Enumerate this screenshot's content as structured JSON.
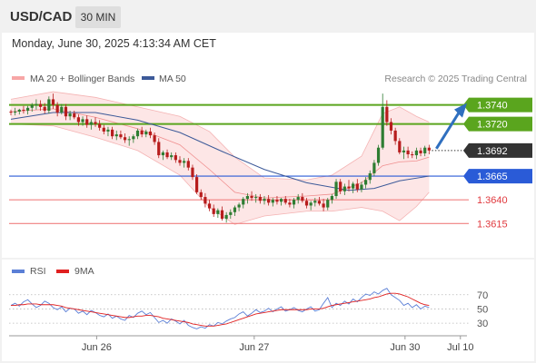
{
  "header": {
    "symbol": "USD/CAD",
    "timeframe": "30 MIN"
  },
  "timestamp": "Monday, June 30, 2025 4:13:34 AM CET",
  "legend": {
    "bollinger": "MA 20 + Bollinger Bands",
    "ma50": "MA 50",
    "copyright": "Research © 2025 Trading Central",
    "rsi": "RSI",
    "rsi_ma": "9MA"
  },
  "colors": {
    "candle_up": "#2e7d32",
    "candle_down": "#b71c1c",
    "resistance": "#5aa51e",
    "support_first": "#2a5bd7",
    "support": "#f08080",
    "ma50": "#3d5a99",
    "bollinger": "#f7a6a6",
    "rsi": "#5b7fd6",
    "rsi_ma": "#e02020",
    "current_price_bg": "#333333",
    "arrow": "#2f6fbf"
  },
  "chart_data": [
    {
      "type": "candlestick",
      "title": "USD/CAD 30 MIN",
      "x_ticks": [
        "Jun 26",
        "Jun 27",
        "Jun 30",
        "Jul 10"
      ],
      "ylim": [
        1.36,
        1.3755
      ],
      "current_price": 1.3692,
      "levels": [
        {
          "value": 1.374,
          "label": "1.3740",
          "kind": "resistance"
        },
        {
          "value": 1.372,
          "label": "1.3720",
          "kind": "resistance"
        },
        {
          "value": 1.3665,
          "label": "1.3665",
          "kind": "support_first"
        },
        {
          "value": 1.364,
          "label": "1.3640",
          "kind": "support"
        },
        {
          "value": 1.3615,
          "label": "1.3615",
          "kind": "support"
        }
      ],
      "forecast_arrow": {
        "from": 1.3692,
        "to": 1.374,
        "direction": "up"
      },
      "candles": [
        [
          1.3733,
          1.3735,
          1.3729,
          1.3732
        ],
        [
          1.3732,
          1.3737,
          1.3729,
          1.3733
        ],
        [
          1.3733,
          1.3736,
          1.373,
          1.3735
        ],
        [
          1.3735,
          1.3739,
          1.3731,
          1.3734
        ],
        [
          1.3734,
          1.3739,
          1.373,
          1.3737
        ],
        [
          1.3737,
          1.3742,
          1.3733,
          1.374
        ],
        [
          1.374,
          1.3746,
          1.3735,
          1.3741
        ],
        [
          1.3741,
          1.3745,
          1.3734,
          1.3738
        ],
        [
          1.3738,
          1.3742,
          1.3731,
          1.3734
        ],
        [
          1.3734,
          1.3749,
          1.3731,
          1.3746
        ],
        [
          1.3746,
          1.3752,
          1.3736,
          1.374
        ],
        [
          1.374,
          1.3743,
          1.3728,
          1.3732
        ],
        [
          1.3732,
          1.3741,
          1.373,
          1.3738
        ],
        [
          1.3738,
          1.3741,
          1.3724,
          1.3728
        ],
        [
          1.3728,
          1.3734,
          1.3724,
          1.3731
        ],
        [
          1.3731,
          1.3734,
          1.3725,
          1.3727
        ],
        [
          1.3727,
          1.373,
          1.3718,
          1.3722
        ],
        [
          1.3722,
          1.3728,
          1.3718,
          1.3725
        ],
        [
          1.3725,
          1.3729,
          1.3716,
          1.3719
        ],
        [
          1.3719,
          1.3725,
          1.3714,
          1.3722
        ],
        [
          1.3722,
          1.3727,
          1.3717,
          1.372
        ],
        [
          1.372,
          1.3724,
          1.3713,
          1.3716
        ],
        [
          1.3716,
          1.3719,
          1.3709,
          1.3712
        ],
        [
          1.3712,
          1.3717,
          1.3707,
          1.3714
        ],
        [
          1.3714,
          1.3717,
          1.3704,
          1.3707
        ],
        [
          1.3707,
          1.3713,
          1.3703,
          1.3709
        ],
        [
          1.3709,
          1.3713,
          1.3704,
          1.3706
        ],
        [
          1.3706,
          1.371,
          1.37,
          1.3703
        ],
        [
          1.3703,
          1.3707,
          1.3697,
          1.3704
        ],
        [
          1.3704,
          1.3709,
          1.37,
          1.3707
        ],
        [
          1.3707,
          1.3715,
          1.3704,
          1.3713
        ],
        [
          1.3713,
          1.3717,
          1.3706,
          1.3709
        ],
        [
          1.3709,
          1.3714,
          1.3706,
          1.3712
        ],
        [
          1.3712,
          1.3716,
          1.3705,
          1.3708
        ],
        [
          1.3708,
          1.3711,
          1.3698,
          1.3701
        ],
        [
          1.3701,
          1.3705,
          1.3684,
          1.3687
        ],
        [
          1.3687,
          1.3692,
          1.3682,
          1.369
        ],
        [
          1.369,
          1.3693,
          1.3683,
          1.3685
        ],
        [
          1.3685,
          1.369,
          1.3682,
          1.3687
        ],
        [
          1.3687,
          1.369,
          1.3679,
          1.3682
        ],
        [
          1.3682,
          1.3686,
          1.3676,
          1.3679
        ],
        [
          1.3679,
          1.3684,
          1.3674,
          1.3681
        ],
        [
          1.3681,
          1.3684,
          1.3671,
          1.3674
        ],
        [
          1.3674,
          1.3677,
          1.3661,
          1.3664
        ],
        [
          1.3664,
          1.3667,
          1.3646,
          1.3648
        ],
        [
          1.3648,
          1.3651,
          1.364,
          1.3643
        ],
        [
          1.3643,
          1.3647,
          1.3632,
          1.3636
        ],
        [
          1.3636,
          1.364,
          1.3628,
          1.3631
        ],
        [
          1.3631,
          1.3635,
          1.3622,
          1.3625
        ],
        [
          1.3625,
          1.3631,
          1.3621,
          1.3629
        ],
        [
          1.3629,
          1.3633,
          1.3618,
          1.362
        ],
        [
          1.362,
          1.3627,
          1.3616,
          1.3624
        ],
        [
          1.3624,
          1.363,
          1.362,
          1.3627
        ],
        [
          1.3627,
          1.3634,
          1.3623,
          1.3632
        ],
        [
          1.3632,
          1.3637,
          1.3628,
          1.3635
        ],
        [
          1.3635,
          1.3643,
          1.3631,
          1.3641
        ],
        [
          1.3641,
          1.3647,
          1.3636,
          1.3644
        ],
        [
          1.3644,
          1.3649,
          1.3639,
          1.3642
        ],
        [
          1.3642,
          1.3646,
          1.3637,
          1.3643
        ],
        [
          1.3643,
          1.3646,
          1.3636,
          1.3639
        ],
        [
          1.3639,
          1.3644,
          1.3635,
          1.3641
        ],
        [
          1.3641,
          1.3645,
          1.3634,
          1.3637
        ],
        [
          1.3637,
          1.3642,
          1.3633,
          1.364
        ],
        [
          1.364,
          1.3644,
          1.3635,
          1.3638
        ],
        [
          1.3638,
          1.3642,
          1.3634,
          1.3641
        ],
        [
          1.3641,
          1.3644,
          1.3635,
          1.3637
        ],
        [
          1.3637,
          1.3641,
          1.3632,
          1.3635
        ],
        [
          1.3635,
          1.3642,
          1.3631,
          1.364
        ],
        [
          1.364,
          1.3646,
          1.3636,
          1.3643
        ],
        [
          1.3643,
          1.3647,
          1.3637,
          1.3639
        ],
        [
          1.3639,
          1.3642,
          1.3631,
          1.3634
        ],
        [
          1.3634,
          1.3639,
          1.3629,
          1.3637
        ],
        [
          1.3637,
          1.3642,
          1.3633,
          1.3639
        ],
        [
          1.3639,
          1.3643,
          1.3634,
          1.3636
        ],
        [
          1.3636,
          1.3641,
          1.3628,
          1.3632
        ],
        [
          1.3632,
          1.3642,
          1.3629,
          1.364
        ],
        [
          1.364,
          1.3646,
          1.3636,
          1.3644
        ],
        [
          1.3644,
          1.3662,
          1.3641,
          1.3659
        ],
        [
          1.3659,
          1.3662,
          1.3646,
          1.3649
        ],
        [
          1.3649,
          1.3657,
          1.3645,
          1.3654
        ],
        [
          1.3654,
          1.3661,
          1.3649,
          1.3652
        ],
        [
          1.3652,
          1.3659,
          1.3647,
          1.3657
        ],
        [
          1.3657,
          1.3662,
          1.3648,
          1.3651
        ],
        [
          1.3651,
          1.3659,
          1.3648,
          1.3656
        ],
        [
          1.3656,
          1.3664,
          1.3652,
          1.3661
        ],
        [
          1.3661,
          1.3671,
          1.3657,
          1.3668
        ],
        [
          1.3668,
          1.3682,
          1.3665,
          1.3679
        ],
        [
          1.3679,
          1.3698,
          1.3676,
          1.3695
        ],
        [
          1.3695,
          1.3752,
          1.3693,
          1.3738
        ],
        [
          1.3738,
          1.3745,
          1.3718,
          1.3722
        ],
        [
          1.3722,
          1.3726,
          1.3709,
          1.3713
        ],
        [
          1.3713,
          1.3716,
          1.3698,
          1.3702
        ],
        [
          1.3702,
          1.3705,
          1.3688,
          1.369
        ],
        [
          1.369,
          1.3696,
          1.3683,
          1.3692
        ],
        [
          1.3692,
          1.3696,
          1.3684,
          1.3688
        ],
        [
          1.3688,
          1.3691,
          1.3684,
          1.3687
        ],
        [
          1.3687,
          1.3695,
          1.3683,
          1.3692
        ],
        [
          1.3692,
          1.3695,
          1.3686,
          1.3689
        ],
        [
          1.3689,
          1.3697,
          1.3686,
          1.3695
        ],
        [
          1.3695,
          1.3698,
          1.3688,
          1.3692
        ]
      ],
      "bollinger_upper": [
        [
          0,
          1.3746
        ],
        [
          10,
          1.3754
        ],
        [
          20,
          1.3748
        ],
        [
          30,
          1.3738
        ],
        [
          40,
          1.3728
        ],
        [
          47,
          1.3712
        ],
        [
          53,
          1.3685
        ],
        [
          60,
          1.3663
        ],
        [
          70,
          1.3661
        ],
        [
          76,
          1.3666
        ],
        [
          83,
          1.3686
        ],
        [
          88,
          1.3731
        ],
        [
          92,
          1.3738
        ],
        [
          96,
          1.3728
        ],
        [
          99,
          1.3722
        ]
      ],
      "bollinger_lower": [
        [
          0,
          1.372
        ],
        [
          10,
          1.3718
        ],
        [
          20,
          1.3706
        ],
        [
          30,
          1.3692
        ],
        [
          40,
          1.3666
        ],
        [
          47,
          1.3632
        ],
        [
          53,
          1.3614
        ],
        [
          60,
          1.3623
        ],
        [
          70,
          1.3628
        ],
        [
          76,
          1.3628
        ],
        [
          83,
          1.3632
        ],
        [
          88,
          1.3628
        ],
        [
          92,
          1.3618
        ],
        [
          96,
          1.3633
        ],
        [
          99,
          1.3648
        ]
      ],
      "ma20": [
        [
          0,
          1.3733
        ],
        [
          10,
          1.3736
        ],
        [
          20,
          1.3727
        ],
        [
          30,
          1.3715
        ],
        [
          40,
          1.3698
        ],
        [
          47,
          1.3672
        ],
        [
          53,
          1.3648
        ],
        [
          60,
          1.3642
        ],
        [
          70,
          1.3644
        ],
        [
          76,
          1.3646
        ],
        [
          83,
          1.3658
        ],
        [
          88,
          1.3676
        ],
        [
          92,
          1.368
        ],
        [
          96,
          1.3681
        ],
        [
          99,
          1.3685
        ]
      ],
      "ma50": [
        [
          0,
          1.3725
        ],
        [
          10,
          1.3732
        ],
        [
          20,
          1.3732
        ],
        [
          30,
          1.3724
        ],
        [
          40,
          1.3711
        ],
        [
          50,
          1.3691
        ],
        [
          60,
          1.3672
        ],
        [
          70,
          1.3658
        ],
        [
          80,
          1.365
        ],
        [
          86,
          1.3652
        ],
        [
          92,
          1.366
        ],
        [
          99,
          1.3665
        ]
      ],
      "rsi": {
        "ylim": [
          20,
          85
        ],
        "ticks": [
          30,
          50,
          70
        ],
        "rsi_values": [
          55,
          58,
          54,
          60,
          63,
          57,
          52,
          55,
          61,
          58,
          52,
          49,
          53,
          46,
          51,
          50,
          44,
          47,
          42,
          48,
          45,
          41,
          39,
          43,
          37,
          40,
          36,
          34,
          41,
          38,
          44,
          47,
          42,
          45,
          38,
          31,
          34,
          30,
          36,
          33,
          29,
          34,
          27,
          24,
          22,
          25,
          23,
          28,
          26,
          31,
          29,
          33,
          36,
          38,
          43,
          46,
          40,
          44,
          49,
          45,
          47,
          51,
          46,
          50,
          53,
          47,
          49,
          52,
          48,
          46,
          50,
          53,
          47,
          49,
          58,
          66,
          52,
          58,
          55,
          61,
          57,
          64,
          60,
          66,
          71,
          69,
          74,
          71,
          76,
          79,
          70,
          66,
          62,
          55,
          58,
          52,
          56,
          50,
          54,
          52
        ],
        "ma_values": [
          55,
          55,
          56,
          56,
          57,
          57,
          57,
          56,
          56,
          56,
          56,
          55,
          54,
          52,
          51,
          50,
          49,
          48,
          47,
          46,
          45,
          44,
          43,
          42,
          41,
          40,
          39,
          38,
          38,
          39,
          40,
          40,
          41,
          41,
          40,
          39,
          37,
          36,
          35,
          34,
          33,
          32,
          31,
          29,
          28,
          27,
          26,
          26,
          26,
          27,
          28,
          29,
          31,
          33,
          35,
          37,
          39,
          41,
          43,
          44,
          45,
          46,
          47,
          48,
          49,
          49,
          49,
          49,
          49,
          49,
          49,
          50,
          50,
          50,
          51,
          53,
          55,
          56,
          57,
          58,
          59,
          60,
          61,
          62,
          63,
          64,
          66,
          67,
          69,
          71,
          72,
          72,
          71,
          69,
          67,
          64,
          61,
          58,
          56,
          55
        ]
      }
    }
  ]
}
